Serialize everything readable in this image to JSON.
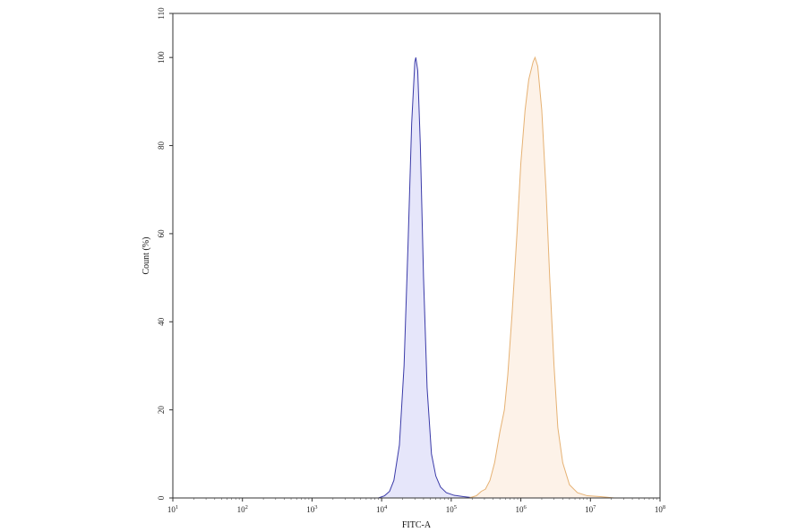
{
  "chart_data": {
    "type": "area",
    "title": "",
    "xlabel": "FITC-A",
    "ylabel": "Count (%)",
    "x_scale": "log10",
    "xlim": [
      10,
      100000000
    ],
    "ylim": [
      0,
      110
    ],
    "grid": false,
    "legend": "none",
    "x_ticks": [
      {
        "value": 10,
        "base": "10",
        "exp": "1"
      },
      {
        "value": 100,
        "base": "10",
        "exp": "2"
      },
      {
        "value": 1000,
        "base": "10",
        "exp": "3"
      },
      {
        "value": 10000,
        "base": "10",
        "exp": "4"
      },
      {
        "value": 100000,
        "base": "10",
        "exp": "5"
      },
      {
        "value": 1000000,
        "base": "10",
        "exp": "6"
      },
      {
        "value": 10000000,
        "base": "10",
        "exp": "7"
      },
      {
        "value": 100000000,
        "base": "10",
        "exp": "8"
      }
    ],
    "y_ticks": [
      {
        "value": 0,
        "label": "0"
      },
      {
        "value": 20,
        "label": "20"
      },
      {
        "value": 40,
        "label": "40"
      },
      {
        "value": 60,
        "label": "60"
      },
      {
        "value": 80,
        "label": "80"
      },
      {
        "value": 100,
        "label": "100"
      },
      {
        "value": 110,
        "label": "110"
      }
    ],
    "series": [
      {
        "stroke": "#3a3aa8",
        "fill": "#e6e6fa",
        "points": [
          [
            9000,
            0
          ],
          [
            11000,
            0.5
          ],
          [
            13000,
            1.5
          ],
          [
            15000,
            4
          ],
          [
            18000,
            12
          ],
          [
            21000,
            30
          ],
          [
            24000,
            58
          ],
          [
            27000,
            85
          ],
          [
            30000,
            99
          ],
          [
            31000,
            100
          ],
          [
            33000,
            97
          ],
          [
            36000,
            80
          ],
          [
            40000,
            50
          ],
          [
            45000,
            25
          ],
          [
            52000,
            10
          ],
          [
            60000,
            5
          ],
          [
            70000,
            2.5
          ],
          [
            85000,
            1.2
          ],
          [
            110000,
            0.6
          ],
          [
            150000,
            0.3
          ],
          [
            220000,
            0
          ]
        ]
      },
      {
        "stroke": "#e6b274",
        "fill": "#fdf2e8",
        "points": [
          [
            180000,
            0
          ],
          [
            230000,
            0.5
          ],
          [
            270000,
            1.5
          ],
          [
            310000,
            2
          ],
          [
            360000,
            4
          ],
          [
            420000,
            8
          ],
          [
            500000,
            15
          ],
          [
            580000,
            20
          ],
          [
            650000,
            28
          ],
          [
            750000,
            42
          ],
          [
            880000,
            60
          ],
          [
            1000000,
            76
          ],
          [
            1150000,
            88
          ],
          [
            1300000,
            95
          ],
          [
            1500000,
            99
          ],
          [
            1600000,
            100
          ],
          [
            1750000,
            98
          ],
          [
            2000000,
            88
          ],
          [
            2300000,
            70
          ],
          [
            2600000,
            50
          ],
          [
            3000000,
            30
          ],
          [
            3400000,
            16
          ],
          [
            4000000,
            8
          ],
          [
            5000000,
            3
          ],
          [
            6500000,
            1.2
          ],
          [
            9000000,
            0.5
          ],
          [
            14000000,
            0.3
          ],
          [
            22000000,
            0
          ]
        ]
      }
    ]
  }
}
